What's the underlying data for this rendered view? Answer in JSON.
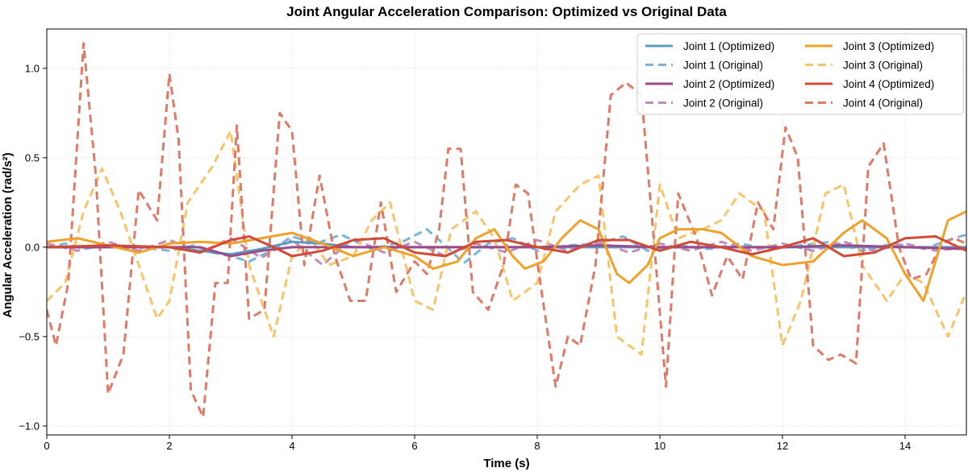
{
  "chart_data": {
    "type": "line",
    "title": "Joint Angular Acceleration Comparison: Optimized vs Original Data",
    "xlabel": "Time (s)",
    "ylabel": "Angular Acceleration (rad/s²)",
    "xlim": [
      0,
      15
    ],
    "ylim": [
      -1.05,
      1.22
    ],
    "xticks": [
      0,
      2,
      4,
      6,
      8,
      10,
      12,
      14
    ],
    "xtick_labels": [
      "0",
      "2",
      "4",
      "6",
      "8",
      "10",
      "12",
      "14"
    ],
    "yticks": [
      -1.0,
      -0.5,
      0.0,
      0.5,
      1.0
    ],
    "ytick_labels": [
      "−1.0",
      "−0.5",
      "0.0",
      "0.5",
      "1.0"
    ],
    "grid": true,
    "legend_position": "top-right",
    "series": [
      {
        "name": "Joint 1 (Optimized)",
        "color": "#5b9bc6",
        "style": "solid",
        "width": 3,
        "opacity": 1,
        "x": [
          0,
          1,
          2,
          2.5,
          3,
          3.5,
          4,
          4.5,
          5,
          6,
          7,
          8,
          9,
          10,
          11,
          12,
          13,
          14,
          15
        ],
        "y": [
          0.0,
          0.0,
          0.0,
          -0.02,
          -0.04,
          -0.01,
          0.03,
          0.02,
          0.0,
          0.0,
          0.0,
          0.0,
          0.0,
          0.0,
          0.0,
          0.0,
          0.0,
          0.0,
          0.0
        ]
      },
      {
        "name": "Joint 1 (Original)",
        "color": "#7ab4d8",
        "style": "dashed",
        "width": 3,
        "opacity": 1,
        "x": [
          0,
          0.3,
          0.6,
          1.0,
          1.5,
          2.0,
          2.4,
          2.7,
          3.0,
          3.3,
          3.6,
          4.0,
          4.4,
          4.8,
          5.3,
          5.8,
          6.2,
          6.5,
          6.8,
          7.2,
          7.6,
          8.0,
          8.5,
          9.0,
          9.4,
          9.8,
          10.3,
          10.8,
          11.3,
          11.8,
          12.3,
          12.8,
          13.3,
          13.8,
          14.3,
          14.8,
          15.0
        ],
        "y": [
          0.0,
          0.02,
          -0.01,
          0.01,
          0.0,
          -0.02,
          0.01,
          -0.03,
          -0.05,
          -0.08,
          -0.03,
          0.06,
          0.02,
          0.07,
          -0.01,
          0.03,
          0.1,
          0.01,
          -0.09,
          0.02,
          0.05,
          -0.02,
          0.01,
          0.02,
          0.06,
          -0.02,
          0.01,
          -0.01,
          0.02,
          -0.01,
          0.01,
          0.03,
          -0.02,
          0.02,
          -0.01,
          0.05,
          0.07
        ]
      },
      {
        "name": "Joint 2 (Optimized)",
        "color": "#9b4a8a",
        "style": "solid",
        "width": 3,
        "opacity": 1,
        "x": [
          0,
          1,
          2,
          2.5,
          3,
          3.5,
          4,
          5,
          6,
          7,
          8,
          9,
          10,
          11,
          12,
          13,
          14,
          15
        ],
        "y": [
          0.0,
          0.0,
          0.0,
          0.0,
          -0.05,
          -0.02,
          0.0,
          0.0,
          0.0,
          0.0,
          0.0,
          0.01,
          0.0,
          0.0,
          0.0,
          0.01,
          0.0,
          -0.01
        ]
      },
      {
        "name": "Joint 2 (Original)",
        "color": "#c58bb8",
        "style": "dashed",
        "width": 3,
        "opacity": 1,
        "x": [
          0,
          0.5,
          1.0,
          1.5,
          2.0,
          2.5,
          3.0,
          3.5,
          4.0,
          4.5,
          5.0,
          5.5,
          6.0,
          6.5,
          7.0,
          7.5,
          8.0,
          8.5,
          9.0,
          9.5,
          10.0,
          10.5,
          11.0,
          11.5,
          12.0,
          12.5,
          13.0,
          13.5,
          14.0,
          14.5,
          15.0
        ],
        "y": [
          0.02,
          -0.02,
          0.03,
          -0.02,
          0.04,
          -0.03,
          0.05,
          -0.06,
          0.04,
          -0.1,
          0.05,
          -0.03,
          0.03,
          -0.05,
          0.02,
          -0.03,
          0.04,
          -0.02,
          0.03,
          -0.03,
          0.02,
          -0.02,
          0.03,
          -0.02,
          0.02,
          -0.02,
          0.03,
          -0.02,
          0.02,
          -0.02,
          0.0
        ]
      },
      {
        "name": "Joint 3 (Optimized)",
        "color": "#f0a12a",
        "style": "solid",
        "width": 3,
        "opacity": 1,
        "x": [
          0,
          0.5,
          1.0,
          1.5,
          2.0,
          2.5,
          3.0,
          3.5,
          4.0,
          4.5,
          5.0,
          5.5,
          6.0,
          6.3,
          6.7,
          7.0,
          7.3,
          7.6,
          7.8,
          8.1,
          8.4,
          8.7,
          9.0,
          9.3,
          9.5,
          9.8,
          10.0,
          10.3,
          10.7,
          11.0,
          11.5,
          12.0,
          12.5,
          13.0,
          13.3,
          13.7,
          14.0,
          14.3,
          14.7,
          15.0
        ],
        "y": [
          0.03,
          0.05,
          0.01,
          -0.03,
          0.02,
          0.03,
          0.02,
          0.05,
          0.08,
          0.02,
          -0.05,
          0.0,
          -0.05,
          -0.12,
          -0.08,
          0.05,
          0.1,
          -0.05,
          -0.12,
          -0.08,
          0.05,
          0.15,
          0.1,
          -0.15,
          -0.2,
          -0.1,
          0.05,
          0.1,
          0.1,
          0.08,
          -0.05,
          -0.1,
          -0.08,
          0.08,
          0.15,
          0.05,
          -0.15,
          -0.3,
          0.15,
          0.2
        ]
      },
      {
        "name": "Joint 3 (Original)",
        "color": "#f7c46a",
        "style": "dashed",
        "width": 3,
        "opacity": 1,
        "x": [
          0,
          0.3,
          0.6,
          0.9,
          1.2,
          1.5,
          1.8,
          2.0,
          2.3,
          2.7,
          3.0,
          3.3,
          3.7,
          4.0,
          4.3,
          4.6,
          5.0,
          5.3,
          5.6,
          6.0,
          6.3,
          6.6,
          7.0,
          7.3,
          7.6,
          8.0,
          8.3,
          8.7,
          9.0,
          9.3,
          9.7,
          10.0,
          10.3,
          10.7,
          11.0,
          11.3,
          11.7,
          12.0,
          12.3,
          12.7,
          13.0,
          13.3,
          13.7,
          14.0,
          14.3,
          14.7,
          15.0
        ],
        "y": [
          -0.3,
          -0.2,
          0.2,
          0.44,
          0.2,
          -0.1,
          -0.4,
          -0.3,
          0.25,
          0.45,
          0.65,
          -0.1,
          -0.5,
          -0.05,
          0.05,
          -0.1,
          -0.05,
          0.15,
          0.25,
          -0.3,
          -0.35,
          0.1,
          0.2,
          0.05,
          -0.3,
          -0.2,
          0.2,
          0.35,
          0.4,
          -0.5,
          -0.6,
          0.35,
          0.05,
          0.1,
          0.15,
          0.3,
          0.2,
          -0.55,
          -0.3,
          0.3,
          0.35,
          -0.1,
          -0.3,
          -0.15,
          -0.2,
          -0.5,
          -0.25
        ]
      },
      {
        "name": "Joint 4 (Optimized)",
        "color": "#d04a35",
        "style": "solid",
        "width": 3,
        "opacity": 1,
        "x": [
          0,
          1,
          2,
          2.5,
          3,
          3.3,
          3.7,
          4.0,
          4.5,
          5.0,
          5.5,
          6.0,
          6.5,
          7.0,
          7.5,
          8.0,
          8.5,
          9.0,
          9.5,
          10.0,
          10.5,
          11.0,
          11.5,
          12.0,
          12.5,
          13.0,
          13.5,
          14.0,
          14.5,
          15.0
        ],
        "y": [
          0.0,
          0.01,
          0.0,
          -0.03,
          0.04,
          0.06,
          0.0,
          -0.05,
          -0.02,
          0.04,
          0.05,
          -0.03,
          -0.05,
          0.03,
          0.04,
          0.0,
          -0.03,
          0.04,
          0.04,
          -0.02,
          0.03,
          0.0,
          -0.04,
          0.0,
          0.05,
          -0.05,
          -0.03,
          0.05,
          0.06,
          -0.02
        ]
      },
      {
        "name": "Joint 4 (Original)",
        "color": "#dd7b68",
        "style": "dashed",
        "width": 3,
        "opacity": 1,
        "x": [
          0,
          0.15,
          0.35,
          0.6,
          0.8,
          1.0,
          1.25,
          1.5,
          1.8,
          2.0,
          2.15,
          2.35,
          2.55,
          2.75,
          2.95,
          3.1,
          3.3,
          3.55,
          3.8,
          4.0,
          4.2,
          4.45,
          4.7,
          4.95,
          5.2,
          5.45,
          5.7,
          6.0,
          6.2,
          6.4,
          6.55,
          6.75,
          6.95,
          7.2,
          7.45,
          7.65,
          7.85,
          8.05,
          8.3,
          8.5,
          8.7,
          8.95,
          9.2,
          9.45,
          9.7,
          9.9,
          10.1,
          10.3,
          10.6,
          10.85,
          11.1,
          11.35,
          11.6,
          11.85,
          12.05,
          12.25,
          12.5,
          12.75,
          12.95,
          13.2,
          13.4,
          13.65,
          13.9,
          14.1,
          14.35,
          14.6,
          14.8,
          15.0
        ],
        "y": [
          -0.35,
          -0.55,
          -0.2,
          1.14,
          0.4,
          -0.82,
          -0.6,
          0.32,
          0.15,
          0.97,
          0.6,
          -0.8,
          -0.95,
          -0.2,
          -0.2,
          0.68,
          -0.4,
          -0.35,
          0.75,
          0.65,
          -0.1,
          0.4,
          -0.05,
          -0.3,
          -0.3,
          0.25,
          -0.25,
          -0.08,
          -0.15,
          0.1,
          0.55,
          0.55,
          -0.25,
          -0.35,
          -0.1,
          0.35,
          0.3,
          -0.2,
          -0.78,
          -0.5,
          -0.55,
          -0.1,
          0.85,
          0.92,
          0.85,
          0.05,
          -0.78,
          0.3,
          0.05,
          -0.27,
          -0.05,
          -0.18,
          0.25,
          0.1,
          0.67,
          0.5,
          -0.55,
          -0.63,
          -0.6,
          -0.65,
          0.45,
          0.58,
          0.0,
          -0.18,
          -0.15,
          0.02,
          0.05,
          0.02
        ]
      }
    ],
    "legend": {
      "columns": 2,
      "entries_order": [
        "Joint 1 (Optimized)",
        "Joint 1 (Original)",
        "Joint 2 (Optimized)",
        "Joint 2 (Original)",
        "Joint 3 (Optimized)",
        "Joint 3 (Original)",
        "Joint 4 (Optimized)",
        "Joint 4 (Original)"
      ]
    }
  }
}
